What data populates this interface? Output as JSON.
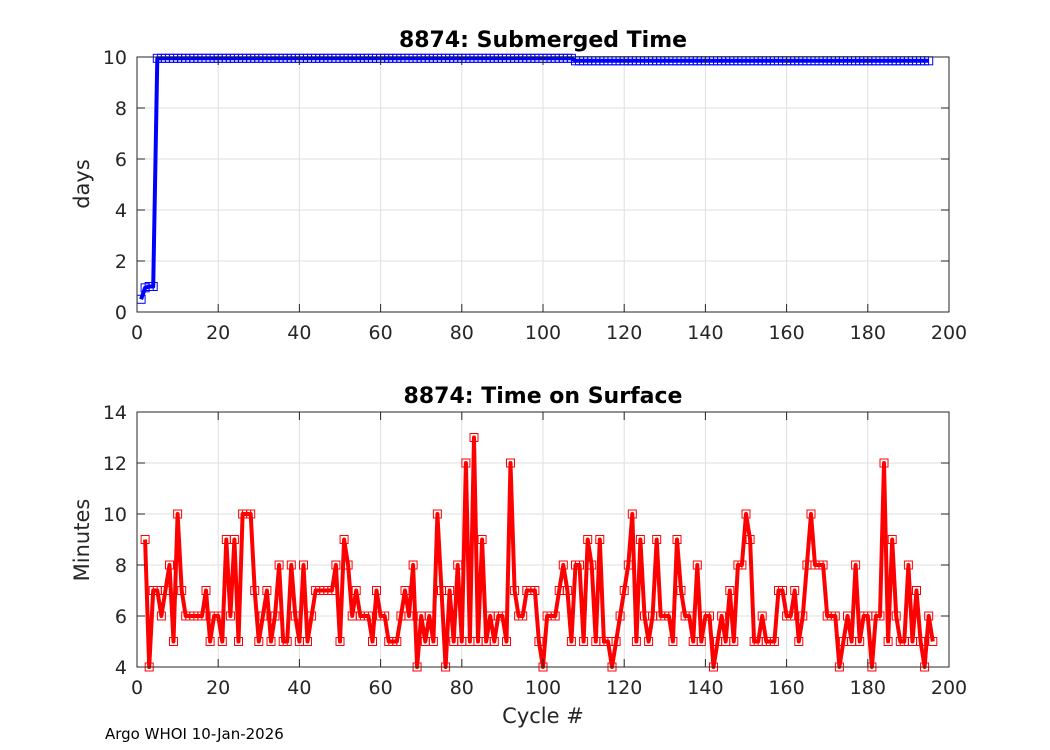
{
  "footer": "Argo WHOI 10-Jan-2026",
  "chart_data": [
    {
      "type": "line",
      "title": "8874: Submerged Time",
      "xlabel": "",
      "ylabel": "days",
      "xlim": [
        0,
        200
      ],
      "ylim": [
        0,
        10
      ],
      "xticks": [
        0,
        20,
        40,
        60,
        80,
        100,
        120,
        140,
        160,
        180,
        200
      ],
      "yticks": [
        0,
        2,
        4,
        6,
        8,
        10
      ],
      "grid": true,
      "color": "#0000ff",
      "marker": "square",
      "series": [
        {
          "name": "Submerged Time",
          "segments": [
            {
              "x_start": 1,
              "x_end": 1,
              "values": [
                0.5
              ]
            },
            {
              "x_start": 2,
              "x_end": 4,
              "values": [
                0.95,
                1.0,
                1.0
              ]
            },
            {
              "x_start": 5,
              "x_end": 107,
              "constant": 9.95
            },
            {
              "x_start": 108,
              "x_end": 125,
              "constant": 9.85
            },
            {
              "x_start": 126,
              "x_end": 195,
              "constant": 9.85
            }
          ]
        }
      ]
    },
    {
      "type": "line",
      "title": "8874: Time on Surface",
      "xlabel": "Cycle #",
      "ylabel": "Minutes",
      "xlim": [
        0,
        200
      ],
      "ylim": [
        4,
        14
      ],
      "xticks": [
        0,
        20,
        40,
        60,
        80,
        100,
        120,
        140,
        160,
        180,
        200
      ],
      "yticks": [
        4,
        6,
        8,
        10,
        12,
        14
      ],
      "grid": true,
      "color": "#ff0000",
      "marker": "square",
      "x_start": 2,
      "values": [
        9,
        4,
        7,
        7,
        6,
        7,
        8,
        5,
        10,
        7,
        6,
        6,
        6,
        6,
        6,
        7,
        5,
        6,
        6,
        5,
        9,
        6,
        9,
        5,
        10,
        10,
        10,
        7,
        5,
        6,
        7,
        5,
        6,
        8,
        5,
        5,
        8,
        6,
        5,
        8,
        5,
        6,
        7,
        7,
        7,
        7,
        7,
        8,
        5,
        9,
        8,
        6,
        7,
        6,
        6,
        6,
        5,
        7,
        6,
        6,
        5,
        5,
        5,
        6,
        7,
        6,
        8,
        4,
        6,
        5,
        6,
        5,
        10,
        7,
        4,
        7,
        5,
        8,
        5,
        12,
        5,
        13,
        5,
        9,
        5,
        6,
        5,
        6,
        6,
        5,
        12,
        7,
        6,
        6,
        7,
        7,
        7,
        5,
        4,
        6,
        6,
        6,
        7,
        8,
        7,
        5,
        8,
        8,
        5,
        9,
        8,
        5,
        9,
        5,
        5,
        4,
        5,
        6,
        7,
        8,
        10,
        5,
        9,
        6,
        5,
        6,
        9,
        6,
        6,
        6,
        5,
        9,
        7,
        6,
        6,
        5,
        8,
        5,
        6,
        6,
        4,
        5,
        6,
        5,
        7,
        5,
        8,
        8,
        10,
        9,
        5,
        5,
        6,
        5,
        5,
        5,
        7,
        7,
        6,
        6,
        7,
        5,
        6,
        8,
        10,
        8,
        8,
        8,
        6,
        6,
        6,
        4,
        5,
        6,
        5,
        8,
        5,
        6,
        6,
        4,
        6,
        6,
        12,
        5,
        9,
        6,
        5,
        5,
        8,
        5,
        7,
        5,
        4,
        6,
        5
      ]
    }
  ]
}
